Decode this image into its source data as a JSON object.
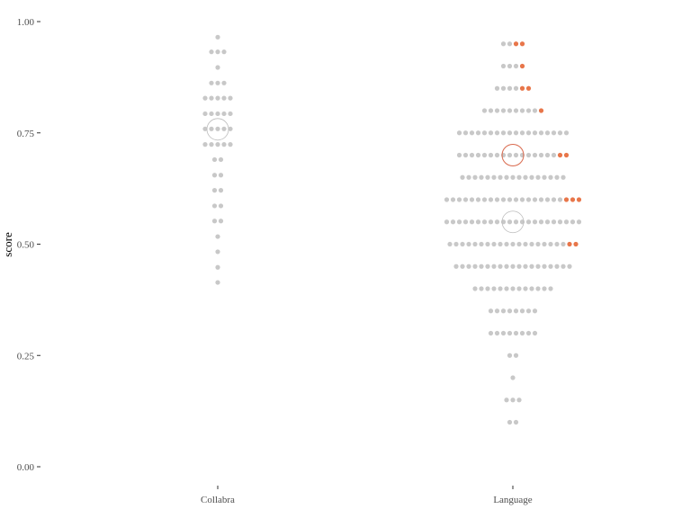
{
  "chart_data": {
    "type": "scatter",
    "subtype": "dotplot-with-mean-circles",
    "title": "",
    "xlabel": "",
    "ylabel": "score",
    "ylim": [
      0.0,
      1.0
    ],
    "yticks": [
      "0.00",
      "0.25",
      "0.50",
      "0.75",
      "1.00"
    ],
    "categories": [
      "Collabra",
      "Language"
    ],
    "grid": false,
    "colors": {
      "dot": "#c8c8c8",
      "highlight": "#e8764a",
      "highlight_ring": "#d9694d",
      "mean_ring": "#bdbdbd"
    },
    "groups": [
      {
        "category": "Collabra",
        "mean": 0.758,
        "mean_highlight": null,
        "bins": [
          {
            "y": 0.965,
            "n": 1,
            "h": 0
          },
          {
            "y": 0.932,
            "n": 3,
            "h": 0
          },
          {
            "y": 0.897,
            "n": 1,
            "h": 0
          },
          {
            "y": 0.862,
            "n": 3,
            "h": 0
          },
          {
            "y": 0.828,
            "n": 5,
            "h": 0
          },
          {
            "y": 0.793,
            "n": 5,
            "h": 0
          },
          {
            "y": 0.759,
            "n": 5,
            "h": 0
          },
          {
            "y": 0.724,
            "n": 5,
            "h": 0
          },
          {
            "y": 0.69,
            "n": 2,
            "h": 0
          },
          {
            "y": 0.655,
            "n": 2,
            "h": 0
          },
          {
            "y": 0.621,
            "n": 2,
            "h": 0
          },
          {
            "y": 0.586,
            "n": 2,
            "h": 0
          },
          {
            "y": 0.552,
            "n": 2,
            "h": 0
          },
          {
            "y": 0.517,
            "n": 1,
            "h": 0
          },
          {
            "y": 0.483,
            "n": 1,
            "h": 0
          },
          {
            "y": 0.448,
            "n": 1,
            "h": 0
          },
          {
            "y": 0.414,
            "n": 1,
            "h": 0
          }
        ]
      },
      {
        "category": "Language",
        "mean": 0.55,
        "mean_highlight": 0.7,
        "bins": [
          {
            "y": 0.95,
            "n": 4,
            "h": 2
          },
          {
            "y": 0.9,
            "n": 4,
            "h": 1
          },
          {
            "y": 0.85,
            "n": 6,
            "h": 2
          },
          {
            "y": 0.8,
            "n": 10,
            "h": 1
          },
          {
            "y": 0.75,
            "n": 18,
            "h": 0
          },
          {
            "y": 0.7,
            "n": 18,
            "h": 2
          },
          {
            "y": 0.65,
            "n": 17,
            "h": 0
          },
          {
            "y": 0.6,
            "n": 22,
            "h": 3
          },
          {
            "y": 0.55,
            "n": 22,
            "h": 0
          },
          {
            "y": 0.5,
            "n": 21,
            "h": 2
          },
          {
            "y": 0.45,
            "n": 19,
            "h": 0
          },
          {
            "y": 0.4,
            "n": 13,
            "h": 0
          },
          {
            "y": 0.35,
            "n": 8,
            "h": 0
          },
          {
            "y": 0.3,
            "n": 8,
            "h": 0
          },
          {
            "y": 0.25,
            "n": 2,
            "h": 0
          },
          {
            "y": 0.2,
            "n": 1,
            "h": 0
          },
          {
            "y": 0.15,
            "n": 3,
            "h": 0
          },
          {
            "y": 0.1,
            "n": 2,
            "h": 0
          }
        ]
      }
    ]
  }
}
